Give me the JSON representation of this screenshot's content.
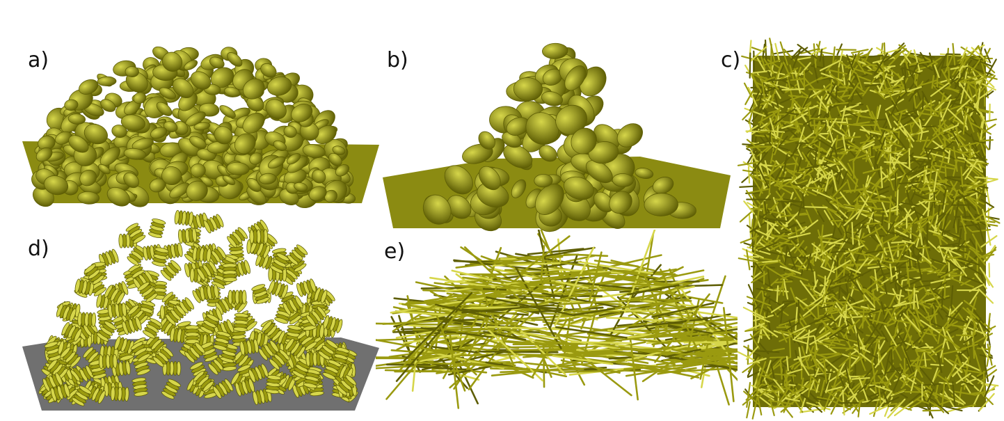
{
  "panels": [
    {
      "id": "a",
      "label": "a)",
      "particle": "disc"
    },
    {
      "id": "b",
      "label": "b)",
      "particle": "ellipsoid"
    },
    {
      "id": "c",
      "label": "c)",
      "particle": "cross-rod"
    },
    {
      "id": "d",
      "label": "d)",
      "particle": "helix"
    },
    {
      "id": "e",
      "label": "e)",
      "particle": "rod"
    }
  ],
  "colors": {
    "particle": "#9a9a10",
    "particle_light": "#d6d64a",
    "particle_dark": "#5e5e05",
    "floor_green": "#8b8b12",
    "floor_gray": "#707070"
  }
}
